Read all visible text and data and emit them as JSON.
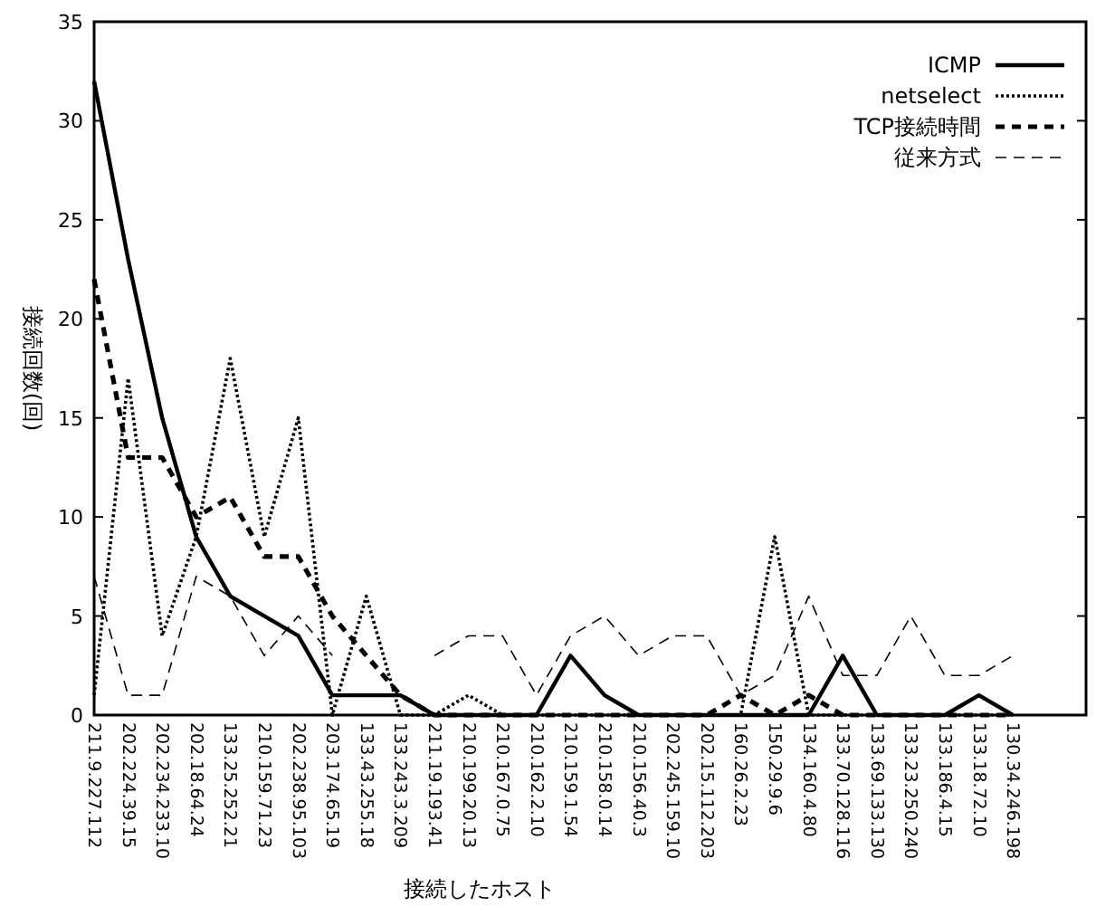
{
  "chart_data": {
    "type": "line",
    "xlabel": "接続したホスト",
    "ylabel": "接続回数(回)",
    "categories": [
      "211.9.227.112",
      "202.224.39.15",
      "202.234.233.10",
      "202.18.64.24",
      "133.25.252.21",
      "210.159.71.23",
      "202.238.95.103",
      "203.174.65.19",
      "133.43.255.18",
      "133.243.3.209",
      "211.19.193.41",
      "210.199.20.13",
      "210.167.0.75",
      "210.162.2.10",
      "210.159.1.54",
      "210.158.0.14",
      "210.156.40.3",
      "202.245.159.10",
      "202.15.112.203",
      "160.26.2.23",
      "150.29.9.6",
      "134.160.4.80",
      "133.70.128.116",
      "133.69.133.130",
      "133.23.250.240",
      "133.186.4.15",
      "133.18.72.10",
      "130.34.246.198"
    ],
    "series": [
      {
        "name": "ICMP",
        "color": "#000000",
        "line_style": "solid",
        "values": [
          32,
          23,
          15,
          9,
          6,
          5,
          4,
          1,
          1,
          1,
          0,
          0,
          0,
          0,
          3,
          1,
          0,
          0,
          0,
          0,
          0,
          0,
          3,
          0,
          0,
          0,
          1,
          0
        ]
      },
      {
        "name": "netselect",
        "color": "#000000",
        "line_style": "dotted",
        "values": [
          1,
          17,
          4,
          9,
          18,
          9,
          15,
          0,
          6,
          0,
          0,
          1,
          0,
          0,
          0,
          0,
          0,
          0,
          0,
          0,
          9,
          0,
          0,
          0,
          0,
          0,
          0,
          0
        ]
      },
      {
        "name": "TCP接続時間",
        "color": "#000000",
        "line_style": "dashed",
        "values": [
          22,
          13,
          13,
          10,
          11,
          8,
          8,
          5,
          3,
          1,
          0,
          0,
          0,
          0,
          0,
          0,
          0,
          0,
          0,
          1,
          0,
          1,
          0,
          0,
          0,
          0,
          0,
          0
        ]
      },
      {
        "name": "従来方式",
        "color": "#000000",
        "line_style": "dashed",
        "values": [
          7,
          1,
          1,
          7,
          6,
          3,
          5,
          3,
          null,
          null,
          3,
          4,
          4,
          1,
          4,
          5,
          3,
          4,
          4,
          1,
          2,
          6,
          2,
          2,
          5,
          2,
          2,
          3
        ]
      }
    ],
    "ylim": [
      0,
      35
    ],
    "yticks": [
      0,
      5,
      10,
      15,
      20,
      25,
      30,
      35
    ],
    "grid": false,
    "legend": "top right",
    "marker": "none"
  }
}
